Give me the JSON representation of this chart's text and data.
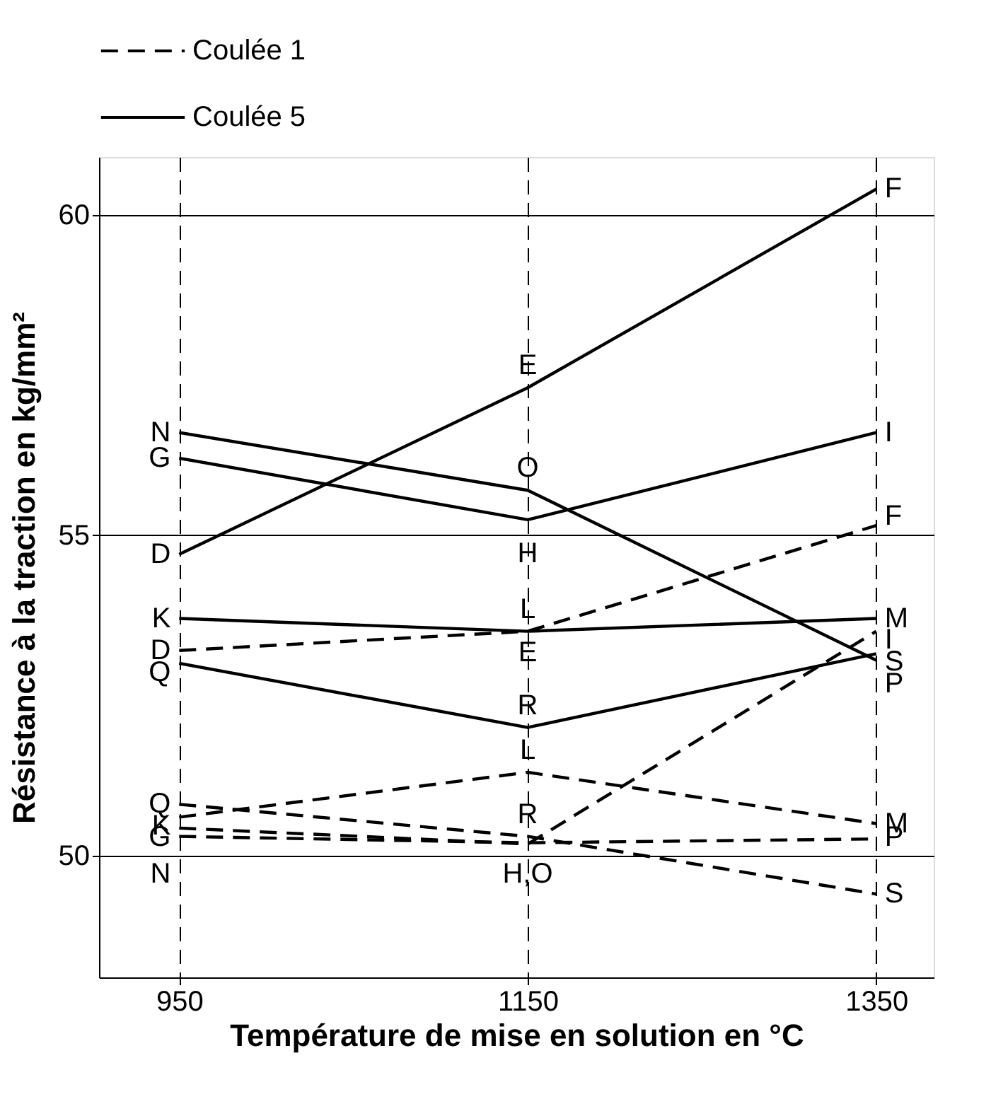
{
  "chart_data": {
    "type": "line",
    "xlabel": "Température de mise en solution en °C",
    "ylabel": "Résistance à la traction en kg/mm²",
    "x": [
      950,
      1150,
      1350
    ],
    "xlim": [
      904,
      1383
    ],
    "xticks": [
      950,
      1150,
      1350
    ],
    "ylim": [
      48.1,
      60.9
    ],
    "yticks": [
      50,
      55,
      60
    ],
    "grid": true,
    "legend": "top",
    "series": [
      {
        "name": "Coulée 1",
        "color": "#000000",
        "line_style": "dashed",
        "values": [
          53.2,
          53.5,
          55.15
        ]
      },
      {
        "color": "#000000",
        "line_style": "dashed",
        "values": [
          50.43,
          50.18,
          53.5
        ]
      },
      {
        "color": "#000000",
        "line_style": "dashed",
        "values": [
          50.6,
          51.3,
          50.5
        ]
      },
      {
        "color": "#000000",
        "line_style": "dashed",
        "values": [
          50.3,
          50.2,
          50.26
        ]
      },
      {
        "color": "#000000",
        "line_style": "dashed",
        "values": [
          50.8,
          50.3,
          49.4
        ]
      },
      {
        "name": "Coulée 5",
        "color": "#000000",
        "line_style": "solid",
        "values": [
          54.7,
          57.3,
          60.4
        ]
      },
      {
        "color": "#000000",
        "line_style": "solid",
        "values": [
          56.2,
          55.24,
          56.6
        ]
      },
      {
        "color": "#000000",
        "line_style": "solid",
        "values": [
          53.7,
          53.5,
          53.7
        ]
      },
      {
        "color": "#000000",
        "line_style": "solid",
        "values": [
          56.6,
          55.7,
          53.05
        ]
      },
      {
        "color": "#000000",
        "line_style": "solid",
        "values": [
          53.0,
          52.0,
          53.15
        ]
      }
    ],
    "annotations": [
      {
        "text": "N",
        "x": 950,
        "y": 56.6
      },
      {
        "text": "G",
        "x": 950,
        "y": 56.2
      },
      {
        "text": "D",
        "x": 950,
        "y": 54.7
      },
      {
        "text": "K",
        "x": 950,
        "y": 53.7
      },
      {
        "text": "D",
        "x": 950,
        "y": 53.2
      },
      {
        "text": "Q",
        "x": 950,
        "y": 53.0
      },
      {
        "text": "Q",
        "x": 950,
        "y": 50.8
      },
      {
        "text": "K",
        "x": 950,
        "y": 50.6
      },
      {
        "text": "G",
        "x": 950,
        "y": 50.43
      },
      {
        "text": "N",
        "x": 950,
        "y": 50.3
      },
      {
        "text": "E",
        "x": 1150,
        "y": 57.3
      },
      {
        "text": "O",
        "x": 1150,
        "y": 55.7
      },
      {
        "text": "H",
        "x": 1150,
        "y": 55.24
      },
      {
        "text": "L",
        "x": 1150,
        "y": 53.5
      },
      {
        "text": "E",
        "x": 1150,
        "y": 53.5
      },
      {
        "text": "R",
        "x": 1150,
        "y": 52.0
      },
      {
        "text": "L",
        "x": 1150,
        "y": 51.3
      },
      {
        "text": "R",
        "x": 1150,
        "y": 50.3
      },
      {
        "text": "H,O",
        "x": 1150,
        "y": 50.2
      },
      {
        "text": "F",
        "x": 1350,
        "y": 60.4
      },
      {
        "text": "I",
        "x": 1350,
        "y": 56.6
      },
      {
        "text": "F",
        "x": 1350,
        "y": 55.15
      },
      {
        "text": "M",
        "x": 1350,
        "y": 53.7
      },
      {
        "text": "I",
        "x": 1350,
        "y": 53.5
      },
      {
        "text": "S",
        "x": 1350,
        "y": 53.15
      },
      {
        "text": "P",
        "x": 1350,
        "y": 53.05
      },
      {
        "text": "M",
        "x": 1350,
        "y": 50.5
      },
      {
        "text": "P",
        "x": 1350,
        "y": 50.26
      },
      {
        "text": "S",
        "x": 1350,
        "y": 49.4
      }
    ]
  }
}
